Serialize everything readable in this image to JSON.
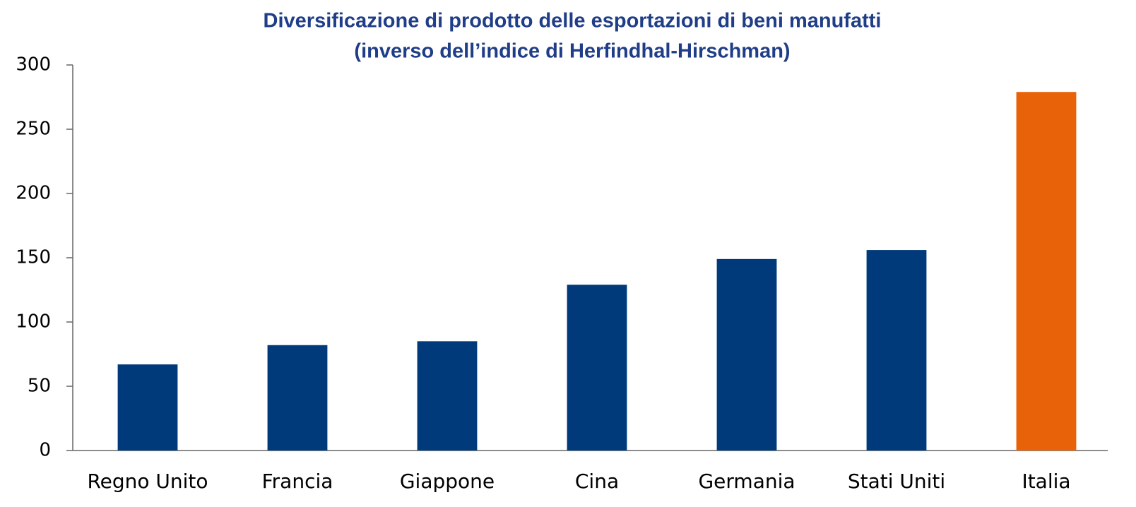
{
  "chart_data": {
    "type": "bar",
    "title": "Diversificazione di prodotto delle esportazioni di beni manufatti",
    "subtitle": "(inverso dell’indice di Herfindhal-Hirschman)",
    "categories": [
      "Regno Unito",
      "Francia",
      "Giappone",
      "Cina",
      "Germania",
      "Stati Uniti",
      "Italia"
    ],
    "values": [
      67,
      82,
      85,
      129,
      149,
      156,
      279
    ],
    "colors": [
      "#003a7a",
      "#003a7a",
      "#003a7a",
      "#003a7a",
      "#003a7a",
      "#003a7a",
      "#e8620a"
    ],
    "ylim": [
      0,
      300
    ],
    "yticks": [
      0,
      50,
      100,
      150,
      200,
      250,
      300
    ],
    "grid": false
  }
}
